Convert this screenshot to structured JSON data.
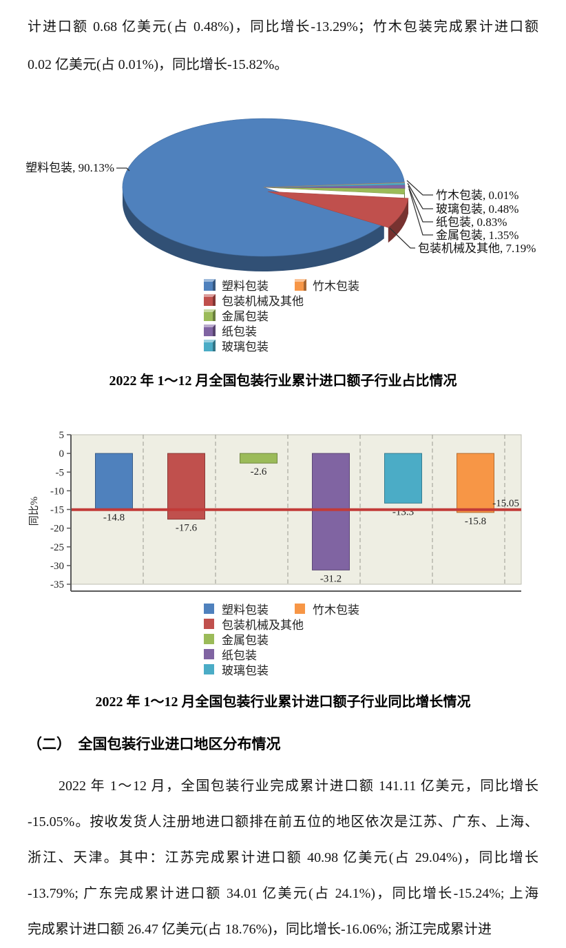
{
  "intro": {
    "lines": [
      "计进口额 0.68 亿美元(占 0.48%)，同比增长-13.29%；竹木包装完成累计进口额",
      "0.02 亿美元(占 0.01%)，同比增长-15.82%。"
    ]
  },
  "pie": {
    "callout_left": "塑料包装, 90.13%",
    "callouts_right": [
      "竹木包装, 0.01%",
      "玻璃包装, 0.48%",
      "纸包装, 0.83%",
      "金属包装, 1.35%",
      "包装机械及其他, 7.19%"
    ],
    "caption": "2022 年 1～12 月全国包装行业累计进口额子行业占比情况",
    "legend_col1": [
      {
        "label": "塑料包装",
        "color": "#4f81bd"
      },
      {
        "label": "包装机械及其他",
        "color": "#c0504d"
      },
      {
        "label": "金属包装",
        "color": "#9bbb59"
      },
      {
        "label": "纸包装",
        "color": "#8064a2"
      },
      {
        "label": "玻璃包装",
        "color": "#4bacc6"
      }
    ],
    "legend_col2": [
      {
        "label": "竹木包装",
        "color": "#f79646"
      }
    ]
  },
  "bar": {
    "caption": "2022 年 1～12 月全国包装行业累计进口额子行业同比增长情况",
    "ylabel": "同比%",
    "ref_label": "-15.05",
    "legend_col1": [
      {
        "label": "塑料包装",
        "color": "#4f81bd"
      },
      {
        "label": "包装机械及其他",
        "color": "#c0504d"
      },
      {
        "label": "金属包装",
        "color": "#9bbb59"
      },
      {
        "label": "纸包装",
        "color": "#8064a2"
      },
      {
        "label": "玻璃包装",
        "color": "#4bacc6"
      }
    ],
    "legend_col2": [
      {
        "label": "竹木包装",
        "color": "#f79646"
      }
    ]
  },
  "section": {
    "heading": "（二）　全国包装行业进口地区分布情况",
    "lines": [
      "2022 年 1～12 月，全国包装行业完成累计进口额 141.11 亿美元，同比增长",
      "-15.05%。按收发货人注册地进口额排在前五位的地区依次是江苏、广东、上海、",
      "浙江、天津。其中：江苏完成累计进口额 40.98 亿美元(占 29.04%)，同比增长",
      "-13.79%; 广东完成累计进口额 34.01 亿美元(占 24.1%)，同比增长-15.24%; 上海",
      "完成累计进口额 26.47 亿美元(占 18.76%)，同比增长-16.06%; 浙江完成累计进"
    ]
  },
  "chart_data": [
    {
      "type": "pie",
      "title": "2022 年 1～12 月全国包装行业累计进口额子行业占比情况",
      "labels": [
        "塑料包装",
        "包装机械及其他",
        "金属包装",
        "纸包装",
        "玻璃包装",
        "竹木包装"
      ],
      "values": [
        90.13,
        7.19,
        1.35,
        0.83,
        0.48,
        0.01
      ],
      "unit": "%",
      "colors": [
        "#4f81bd",
        "#c0504d",
        "#9bbb59",
        "#8064a2",
        "#4bacc6",
        "#f79646"
      ],
      "style": "3d-exploded",
      "exploded_slice": "包装机械及其他",
      "legend_position": "bottom"
    },
    {
      "type": "bar",
      "title": "2022 年 1～12 月全国包装行业累计进口额子行业同比增长情况",
      "categories": [
        "塑料包装",
        "包装机械及其他",
        "金属包装",
        "纸包装",
        "玻璃包装",
        "竹木包装"
      ],
      "values": [
        -14.8,
        -17.6,
        -2.6,
        -31.2,
        -13.3,
        -15.8
      ],
      "colors": [
        "#4f81bd",
        "#c0504d",
        "#9bbb59",
        "#8064a2",
        "#4bacc6",
        "#f79646"
      ],
      "ylabel": "同比%",
      "ylim": [
        -35,
        5
      ],
      "yticks": [
        5,
        0,
        -5,
        -10,
        -15,
        -20,
        -25,
        -30,
        -35
      ],
      "reference_line": {
        "value": -15.05,
        "label": "-15.05",
        "color": "#c23b38"
      },
      "grid": "vertical-dashed",
      "plot_bg": "#eeeee3",
      "legend_position": "bottom"
    }
  ]
}
